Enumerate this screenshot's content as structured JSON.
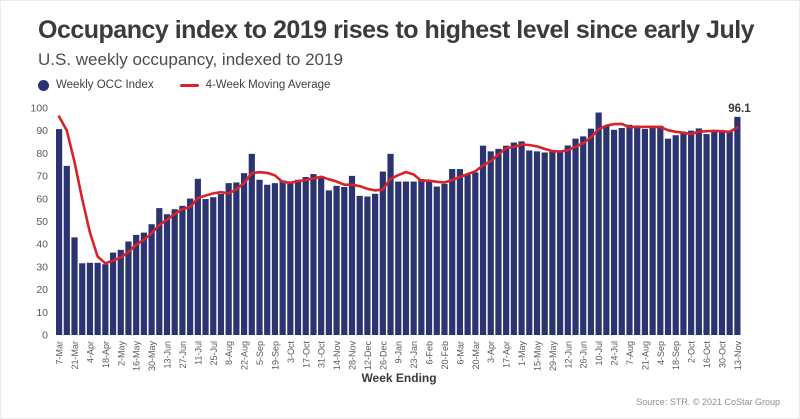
{
  "header": {
    "title": "Occupancy index to 2019 rises to highest level since early July",
    "subtitle": "U.S. weekly occupancy, indexed to 2019"
  },
  "legend": {
    "items": [
      {
        "label": "Weekly OCC Index",
        "marker": "dot",
        "color": "#2b3471"
      },
      {
        "label": "4-Week Moving Average",
        "marker": "line",
        "color": "#d8232a"
      }
    ]
  },
  "footer": {
    "source": "Source: STR. © 2021 CoStar Group"
  },
  "colors": {
    "bar": "#2b3471",
    "line": "#d8232a",
    "title_text": "#3b3b3b",
    "subtitle_text": "#4d4d4d",
    "axis_text": "#5a5a5a",
    "source_text": "#8f8f8f",
    "background": "#ffffff"
  },
  "chart_data": {
    "type": "bar",
    "title": "Occupancy index to 2019 rises to highest level since early July",
    "subtitle": "U.S. weekly occupancy, indexed to 2019",
    "xlabel": "Week Ending",
    "ylabel": "",
    "ylim": [
      0,
      100
    ],
    "yticks": [
      0,
      10,
      20,
      30,
      40,
      50,
      60,
      70,
      80,
      90,
      100
    ],
    "grid": false,
    "legend_position": "top-left",
    "x_tick_label_every_n_bars": 2,
    "categories": [
      "7-Mar",
      "14-Mar",
      "21-Mar",
      "28-Mar",
      "4-Apr",
      "11-Apr",
      "18-Apr",
      "25-Apr",
      "2-May",
      "9-May",
      "16-May",
      "23-May",
      "30-May",
      "6-Jun",
      "13-Jun",
      "20-Jun",
      "27-Jun",
      "4-Jul",
      "11-Jul",
      "18-Jul",
      "25-Jul",
      "1-Aug",
      "8-Aug",
      "15-Aug",
      "22-Aug",
      "29-Aug",
      "5-Sep",
      "12-Sep",
      "19-Sep",
      "26-Sep",
      "3-Oct",
      "10-Oct",
      "17-Oct",
      "24-Oct",
      "31-Oct",
      "7-Nov",
      "14-Nov",
      "21-Nov",
      "28-Nov",
      "5-Dec",
      "12-Dec",
      "19-Dec",
      "26-Dec",
      "2-Jan",
      "9-Jan",
      "16-Jan",
      "23-Jan",
      "30-Jan",
      "6-Feb",
      "13-Feb",
      "20-Feb",
      "27-Feb",
      "6-Mar",
      "13-Mar",
      "20-Mar",
      "27-Mar",
      "3-Apr",
      "10-Apr",
      "17-Apr",
      "24-Apr",
      "1-May",
      "8-May",
      "15-May",
      "22-May",
      "29-May",
      "5-Jun",
      "12-Jun",
      "19-Jun",
      "26-Jun",
      "3-Jul",
      "10-Jul",
      "17-Jul",
      "24-Jul",
      "31-Jul",
      "7-Aug",
      "14-Aug",
      "21-Aug",
      "28-Aug",
      "4-Sep",
      "11-Sep",
      "18-Sep",
      "25-Sep",
      "2-Oct",
      "9-Oct",
      "16-Oct",
      "23-Oct",
      "30-Oct",
      "6-Nov",
      "13-Nov"
    ],
    "series": [
      {
        "name": "Weekly OCC Index",
        "type": "bar",
        "color": "#2b3471",
        "values": [
          90.7,
          74.5,
          43.0,
          31.6,
          31.8,
          31.8,
          31.2,
          36.3,
          37.5,
          41.2,
          44.1,
          45.1,
          48.8,
          55.9,
          53.2,
          55.4,
          56.9,
          60.1,
          68.8,
          59.9,
          60.7,
          62.1,
          66.9,
          67.2,
          71.3,
          79.8,
          68.4,
          66.2,
          66.9,
          68.1,
          67.2,
          68.4,
          69.6,
          70.9,
          70.0,
          63.7,
          65.7,
          65.2,
          70.1,
          61.3,
          61.0,
          62.2,
          72.0,
          79.8,
          67.6,
          67.6,
          67.6,
          68.7,
          68.1,
          65.4,
          66.6,
          73.1,
          73.1,
          70.6,
          71.6,
          83.4,
          80.9,
          82.0,
          83.4,
          84.8,
          85.3,
          81.3,
          80.9,
          80.4,
          81.3,
          80.4,
          83.5,
          86.5,
          87.5,
          90.9,
          98.0,
          92.2,
          90.4,
          91.2,
          92.6,
          92.3,
          90.8,
          91.2,
          92.2,
          86.5,
          88.0,
          89.5,
          90.0,
          91.0,
          88.5,
          90.0,
          89.5,
          90.0,
          96.1
        ]
      },
      {
        "name": "4-Week Moving Average",
        "type": "line",
        "color": "#d8232a",
        "values": [
          96.2,
          90.1,
          76.3,
          59.9,
          45.2,
          34.6,
          31.6,
          32.8,
          34.2,
          36.6,
          39.8,
          42.0,
          44.8,
          48.5,
          50.8,
          53.3,
          55.4,
          56.4,
          60.3,
          61.4,
          62.4,
          62.9,
          62.4,
          64.2,
          66.9,
          71.3,
          71.7,
          71.4,
          70.3,
          67.4,
          67.1,
          67.7,
          68.3,
          69.0,
          69.7,
          68.6,
          67.6,
          66.2,
          66.2,
          65.6,
          64.4,
          63.7,
          64.1,
          68.8,
          70.4,
          71.8,
          70.7,
          67.9,
          68.0,
          67.5,
          67.2,
          68.3,
          69.6,
          70.9,
          72.1,
          74.7,
          76.6,
          79.5,
          82.4,
          82.8,
          83.9,
          83.7,
          83.1,
          82.0,
          81.0,
          80.8,
          81.4,
          82.9,
          84.5,
          87.1,
          90.7,
          92.2,
          92.9,
          93.0,
          91.6,
          91.6,
          91.7,
          91.7,
          91.6,
          90.2,
          89.5,
          89.1,
          88.5,
          89.6,
          89.8,
          89.9,
          89.8,
          89.5,
          91.4
        ]
      }
    ],
    "annotation": {
      "text": "96.1",
      "category": "13-Nov",
      "value": 96.1
    }
  }
}
